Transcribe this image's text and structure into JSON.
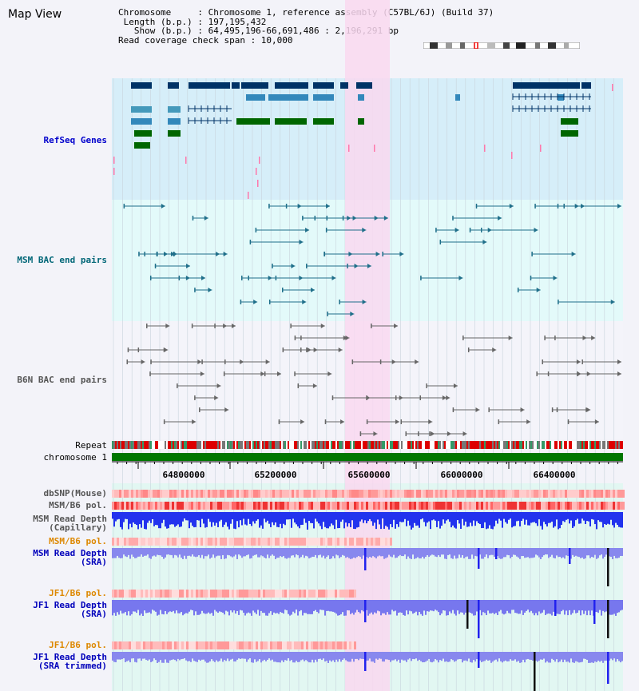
{
  "view_title": "Map View",
  "header": {
    "chromosome": "Chromosome     : Chromosome 1, reference assembly (C57BL/6J) (Build 37)",
    "length": " Length (b.p.) : 197,195,432",
    "show": "   Show (b.p.) : 64,495,196-66,691,486 : 2,196,291 bp",
    "coverage": "Read coverage check span : 10,000"
  },
  "tracks": {
    "refseq": "RefSeq Genes",
    "msm_bac": "MSM BAC end pairs",
    "b6n_bac": "B6N BAC end pairs",
    "repeat": "Repeat",
    "chromosome": "chromosome 1",
    "dbsnp": "dbSNP(Mouse)",
    "msm_b6_pol_1": "MSM/B6 pol.",
    "msm_depth_cap": "MSM Read Depth\n(Capillary)",
    "msm_b6_pol_2": "MSM/B6 pol.",
    "msm_depth_sra": "MSM Read Depth\n(SRA)",
    "jf1_b6_pol_1": "JF1/B6 pol.",
    "jf1_depth_sra": "JF1 Read Depth\n(SRA)",
    "jf1_b6_pol_2": "JF1/B6 pol.",
    "jf1_depth_trim": "JF1 Read Depth\n(SRA trimmed)"
  },
  "axis_ticks": [
    "64800000",
    "65200000",
    "65600000",
    "66000000",
    "66400000"
  ],
  "colors": {
    "refseq_label": "#0000cc",
    "msm_label": "#006677",
    "b6n_label": "#555555",
    "orange_label": "#dd8800",
    "blue_label": "#0000bb",
    "highlight": "#f9d8f0",
    "chromosome_bar": "#007700"
  }
}
